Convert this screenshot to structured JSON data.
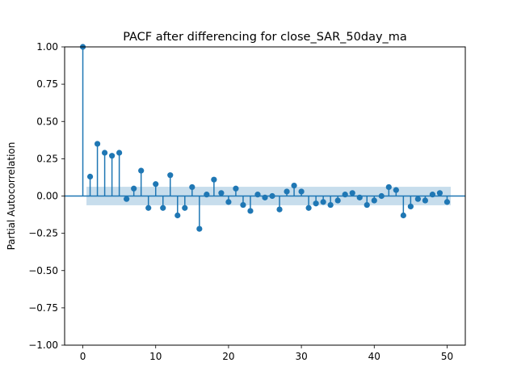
{
  "chart_data": {
    "type": "stem",
    "title": "PACF after differencing for close_SAR_50day_ma",
    "xlabel": "",
    "ylabel": "Partial Autocorrelation",
    "xlim": [
      -2.5,
      52.5
    ],
    "ylim": [
      -1.0,
      1.0
    ],
    "xticks": [
      0,
      10,
      20,
      30,
      40,
      50
    ],
    "xtick_labels": [
      "0",
      "10",
      "20",
      "30",
      "40",
      "50"
    ],
    "yticks": [
      1.0,
      0.75,
      0.5,
      0.25,
      0.0,
      -0.25,
      -0.5,
      -0.75,
      -1.0
    ],
    "ytick_labels": [
      "1.00",
      "0.75",
      "0.50",
      "0.25",
      "0.00",
      "−0.25",
      "−0.50",
      "−0.75",
      "−1.00"
    ],
    "grid": false,
    "confidence_band": {
      "x_start": 0.5,
      "x_end": 50.5,
      "lower": -0.062,
      "upper": 0.062
    },
    "series": [
      {
        "lags": [
          0,
          1,
          2,
          3,
          4,
          5,
          6,
          7,
          8,
          9,
          10,
          11,
          12,
          13,
          14,
          15,
          16,
          17,
          18,
          19,
          20,
          21,
          22,
          23,
          24,
          25,
          26,
          27,
          28,
          29,
          30,
          31,
          32,
          33,
          34,
          35,
          36,
          37,
          38,
          39,
          40,
          41,
          42,
          43,
          44,
          45,
          46,
          47,
          48,
          49,
          50
        ],
        "values": [
          1.0,
          0.13,
          0.35,
          0.29,
          0.27,
          0.29,
          -0.02,
          0.05,
          0.17,
          -0.08,
          0.08,
          -0.08,
          0.14,
          -0.13,
          -0.08,
          0.06,
          -0.22,
          0.01,
          0.11,
          0.02,
          -0.04,
          0.05,
          -0.06,
          -0.1,
          0.01,
          -0.01,
          0.0,
          -0.09,
          0.03,
          0.07,
          0.03,
          -0.08,
          -0.05,
          -0.04,
          -0.06,
          -0.03,
          0.01,
          0.02,
          -0.01,
          -0.06,
          -0.03,
          0.0,
          0.06,
          0.04,
          -0.13,
          -0.07,
          -0.02,
          -0.03,
          0.01,
          0.02,
          -0.04
        ]
      }
    ],
    "colors": {
      "stem": "#1f77b4",
      "band": "#1f77b4",
      "zero_line": "#1f77b4"
    }
  }
}
